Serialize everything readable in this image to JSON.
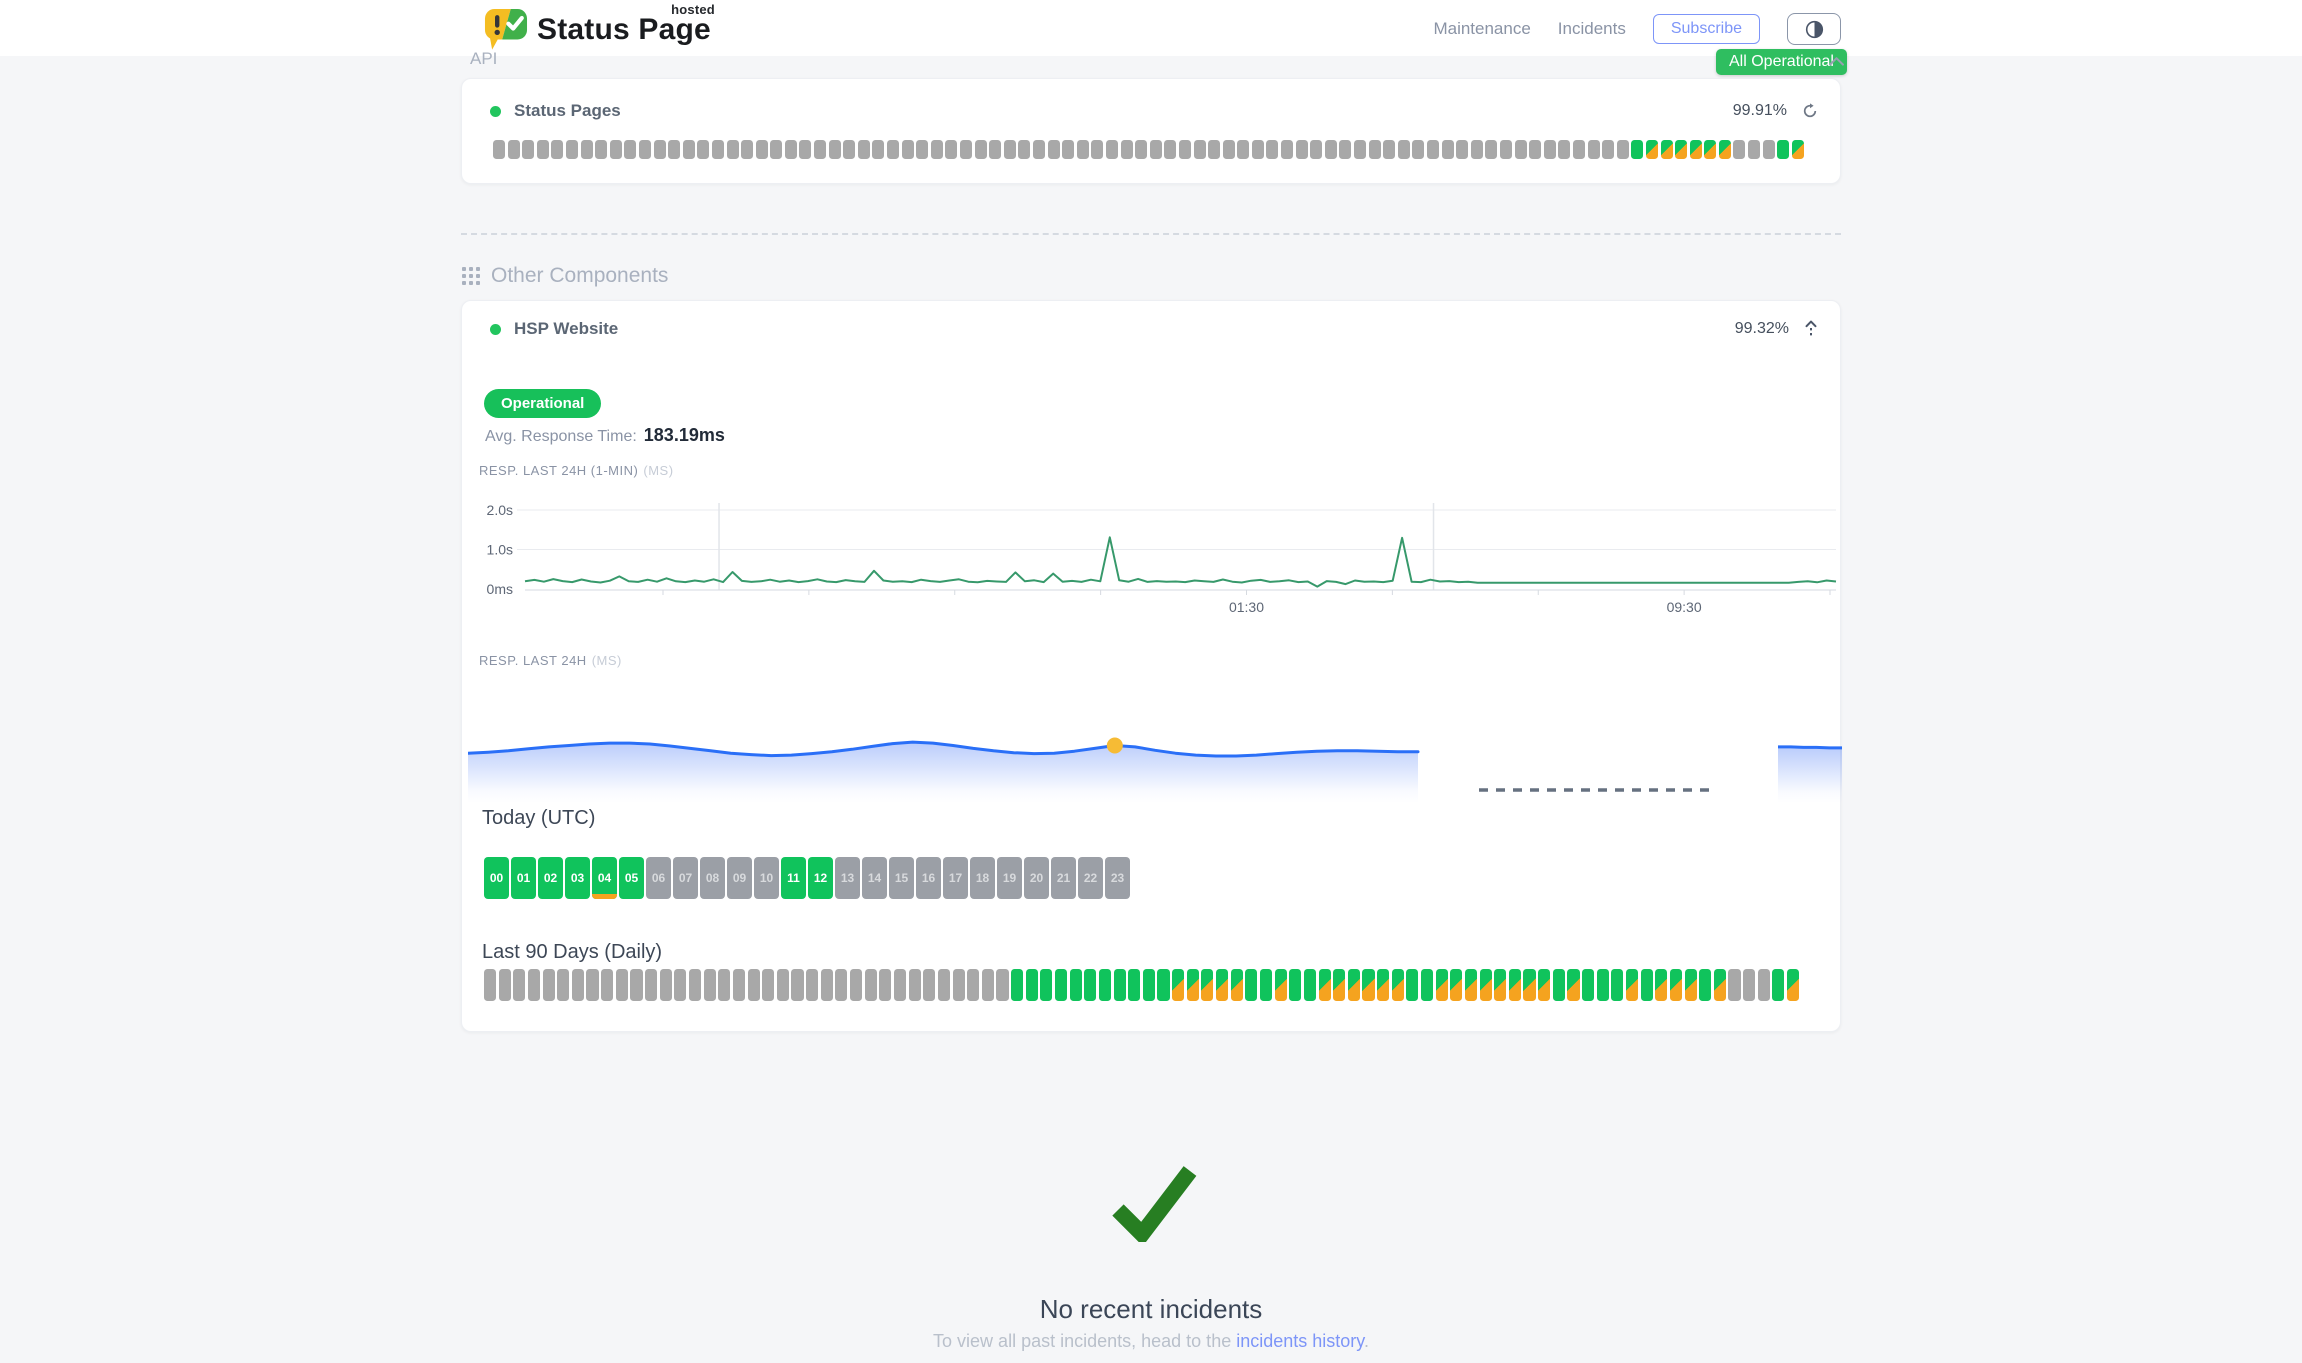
{
  "colors": {
    "accent_green": "#2fbe60",
    "bar_green": "#10c35c",
    "bar_orange": "#f5a31f",
    "bar_gray": "#a8a8a8",
    "link_blue": "#7d95f8",
    "chart_line_green": "#37996b",
    "chart_line_blue": "#2a6ff7",
    "marker_yellow": "#f6bb35",
    "check_green": "#277e22"
  },
  "header": {
    "brand_name": "Status Page",
    "brand_superscript": "hosted",
    "nav": [
      {
        "label": "Maintenance"
      },
      {
        "label": "Incidents"
      }
    ],
    "subscribe_label": "Subscribe",
    "overall_status": "All Operational"
  },
  "api_section": {
    "title": "API",
    "component": {
      "name": "Status Pages",
      "uptime": "99.91%",
      "bars": [
        "g",
        "g",
        "g",
        "g",
        "g",
        "g",
        "g",
        "g",
        "g",
        "g",
        "g",
        "g",
        "g",
        "g",
        "g",
        "g",
        "g",
        "g",
        "g",
        "g",
        "g",
        "g",
        "g",
        "g",
        "g",
        "g",
        "g",
        "g",
        "g",
        "g",
        "g",
        "g",
        "g",
        "g",
        "g",
        "g",
        "g",
        "g",
        "g",
        "g",
        "g",
        "g",
        "g",
        "g",
        "g",
        "g",
        "g",
        "g",
        "g",
        "g",
        "g",
        "g",
        "g",
        "g",
        "g",
        "g",
        "g",
        "g",
        "g",
        "g",
        "g",
        "g",
        "g",
        "g",
        "g",
        "g",
        "g",
        "g",
        "g",
        "g",
        "g",
        "g",
        "g",
        "g",
        "g",
        "g",
        "g",
        "g",
        "u",
        "m",
        "m",
        "m",
        "m",
        "m",
        "m",
        "g",
        "g",
        "g",
        "u",
        "m"
      ]
    }
  },
  "other_section": {
    "title": "Other Components",
    "component": {
      "name": "HSP Website",
      "uptime": "99.32%",
      "status_label": "Operational",
      "avg_label": "Avg. Response Time:",
      "avg_value": "183.19ms"
    },
    "chart_1min": {
      "label": "RESP. LAST 24H (1-MIN)",
      "unit": "(MS)",
      "y_ticks": [
        {
          "label": "2.0s",
          "ms": 2000
        },
        {
          "label": "1.0s",
          "ms": 1000
        },
        {
          "label": "0ms",
          "ms": 0
        }
      ],
      "x_labels": [
        {
          "label": "01:30",
          "tick": 4
        },
        {
          "label": "09:30",
          "tick": 7
        }
      ],
      "tick_count": 9,
      "day_separators": [
        0.148,
        0.693
      ],
      "values_ms": [
        195,
        230,
        185,
        250,
        200,
        175,
        240,
        190,
        165,
        210,
        320,
        195,
        180,
        235,
        185,
        270,
        195,
        175,
        215,
        185,
        245,
        175,
        430,
        205,
        180,
        195,
        235,
        185,
        215,
        175,
        200,
        245,
        190,
        175,
        225,
        195,
        180,
        460,
        215,
        185,
        195,
        175,
        235,
        200,
        180,
        215,
        245,
        185,
        170,
        205,
        190,
        180,
        420,
        195,
        220,
        175,
        390,
        185,
        205,
        180,
        235,
        195,
        1310,
        220,
        185,
        255,
        180,
        200,
        185,
        190,
        175,
        215,
        195,
        180,
        240,
        185,
        165,
        210,
        230,
        180,
        195,
        220,
        175,
        190,
        60,
        200,
        180,
        125,
        215,
        185,
        190,
        175,
        210,
        1295,
        185,
        175,
        235,
        190,
        200,
        175,
        185,
        160,
        160,
        160,
        160,
        160,
        160,
        160,
        160,
        160,
        160,
        160,
        160,
        160,
        160,
        160,
        160,
        160,
        160,
        160,
        160,
        160,
        160,
        160,
        160,
        160,
        160,
        160,
        160,
        160,
        160,
        160,
        160,
        160,
        160,
        180,
        195,
        170,
        215,
        190
      ]
    },
    "chart_24h": {
      "label": "RESP. LAST 24H",
      "unit": "(MS)",
      "values_ms": [
        183,
        185,
        188,
        192,
        196,
        199,
        202,
        204,
        204,
        202,
        198,
        193,
        188,
        183,
        180,
        178,
        179,
        182,
        186,
        191,
        197,
        203,
        206,
        204,
        199,
        193,
        188,
        184,
        182,
        183,
        187,
        193,
        199,
        196,
        189,
        183,
        179,
        177,
        177,
        179,
        182,
        185,
        187,
        188,
        188,
        187,
        186,
        186
      ],
      "marker_index": 32,
      "has_gap_dash": true,
      "tail_values_ms": [
        196,
        196,
        195,
        195,
        194,
        194
      ]
    },
    "today": {
      "title": "Today (UTC)",
      "hours": [
        {
          "label": "00",
          "status": "u"
        },
        {
          "label": "01",
          "status": "u"
        },
        {
          "label": "02",
          "status": "u"
        },
        {
          "label": "03",
          "status": "u"
        },
        {
          "label": "04",
          "status": "uo"
        },
        {
          "label": "05",
          "status": "u"
        },
        {
          "label": "06",
          "status": "g"
        },
        {
          "label": "07",
          "status": "g"
        },
        {
          "label": "08",
          "status": "g"
        },
        {
          "label": "09",
          "status": "g"
        },
        {
          "label": "10",
          "status": "g"
        },
        {
          "label": "11",
          "status": "u"
        },
        {
          "label": "12",
          "status": "u"
        },
        {
          "label": "13",
          "status": "g"
        },
        {
          "label": "14",
          "status": "g"
        },
        {
          "label": "15",
          "status": "g"
        },
        {
          "label": "16",
          "status": "g"
        },
        {
          "label": "17",
          "status": "g"
        },
        {
          "label": "18",
          "status": "g"
        },
        {
          "label": "19",
          "status": "g"
        },
        {
          "label": "20",
          "status": "g"
        },
        {
          "label": "21",
          "status": "g"
        },
        {
          "label": "22",
          "status": "g"
        },
        {
          "label": "23",
          "status": "g"
        }
      ]
    },
    "last90": {
      "title": "Last 90 Days (Daily)",
      "bars": [
        "g",
        "g",
        "g",
        "g",
        "g",
        "g",
        "g",
        "g",
        "g",
        "g",
        "g",
        "g",
        "g",
        "g",
        "g",
        "g",
        "g",
        "g",
        "g",
        "g",
        "g",
        "g",
        "g",
        "g",
        "g",
        "g",
        "g",
        "g",
        "g",
        "g",
        "g",
        "g",
        "g",
        "g",
        "g",
        "g",
        "u",
        "u",
        "u",
        "u",
        "u",
        "u",
        "u",
        "u",
        "u",
        "u",
        "u",
        "m",
        "m",
        "m",
        "m",
        "m",
        "u",
        "u",
        "m",
        "u",
        "u",
        "m",
        "m",
        "m",
        "m",
        "m",
        "m",
        "u",
        "u",
        "m",
        "m",
        "m",
        "m",
        "m",
        "m",
        "m",
        "m",
        "u",
        "m",
        "u",
        "u",
        "u",
        "m",
        "u",
        "m",
        "m",
        "m",
        "u",
        "m",
        "g",
        "g",
        "g",
        "u",
        "m"
      ]
    }
  },
  "incidents": {
    "title": "No recent incidents",
    "subtitle_prefix": "To view all past incidents, head to the ",
    "link_label": "incidents history",
    "subtitle_suffix": "."
  }
}
